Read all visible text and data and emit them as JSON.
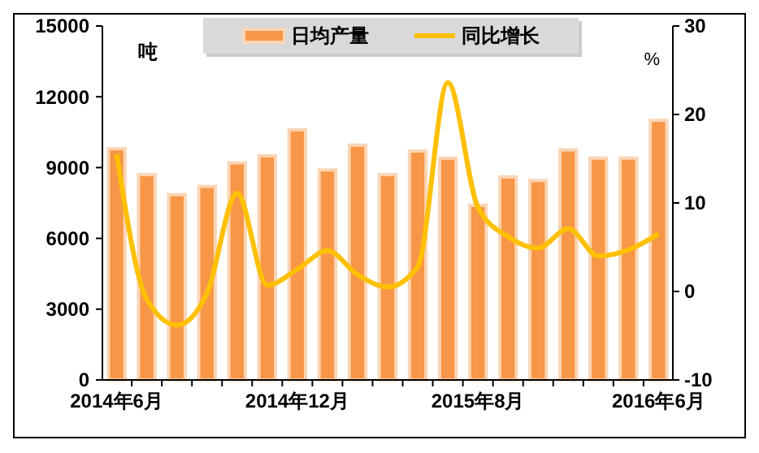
{
  "chart_data": {
    "type": "bar",
    "ylabel": "吨",
    "y2label": "%",
    "categories": [
      "2014年6月",
      null,
      null,
      null,
      null,
      null,
      "2014年12月",
      null,
      null,
      null,
      null,
      null,
      "2015年8月",
      null,
      null,
      null,
      null,
      null,
      "2016年6月"
    ],
    "series": [
      {
        "name": "日均产量",
        "color": "#f79646",
        "values": [
          9800,
          8700,
          7850,
          8200,
          9200,
          9500,
          10600,
          8900,
          9950,
          8700,
          9700,
          9400,
          7400,
          8600,
          8450,
          9750,
          9400,
          9400,
          11000
        ]
      },
      {
        "name": "同比增长",
        "type": "line",
        "axis": "y2",
        "color": "#ffc000",
        "values": [
          15.5,
          -0.9,
          -3.8,
          -0.2,
          11.1,
          0.7,
          2.5,
          4.6,
          1.9,
          0.5,
          2.8,
          23.6,
          9.5,
          6.2,
          4.9,
          7.1,
          4.0,
          4.7,
          6.5
        ]
      }
    ],
    "ylim": [
      0,
      15000
    ],
    "yticks": [
      0,
      3000,
      6000,
      9000,
      12000,
      15000
    ],
    "y2lim": [
      -10,
      30
    ],
    "y2ticks": [
      -10,
      0,
      10,
      20,
      30
    ],
    "legend": "top",
    "grid": false
  }
}
